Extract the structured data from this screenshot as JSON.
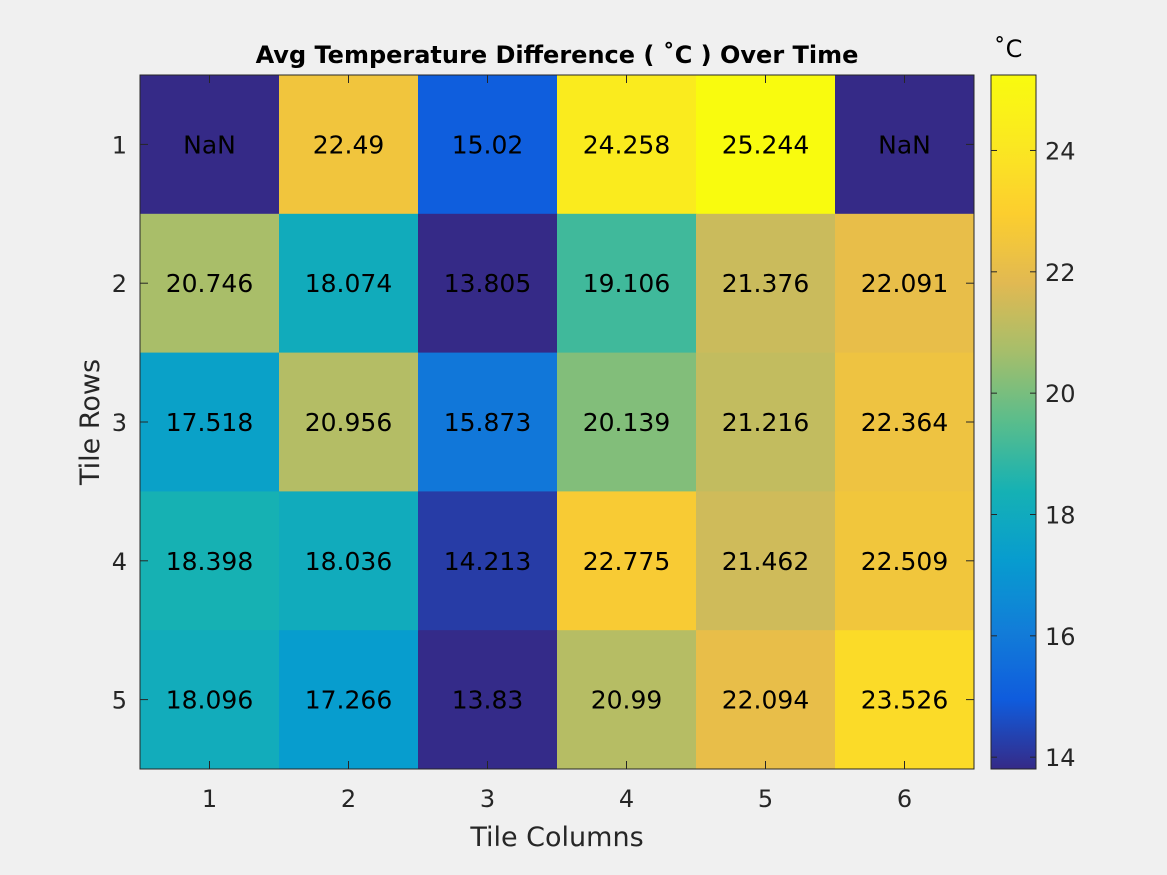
{
  "chart_data": {
    "type": "heatmap",
    "title": "Avg Temperature Difference ( ˚C ) Over Time",
    "xlabel": "Tile Columns",
    "ylabel": "Tile Rows",
    "x_categories": [
      "1",
      "2",
      "3",
      "4",
      "5",
      "6"
    ],
    "y_categories": [
      "1",
      "2",
      "3",
      "4",
      "5"
    ],
    "values": [
      [
        null,
        22.49,
        15.02,
        24.258,
        25.244,
        null
      ],
      [
        20.746,
        18.074,
        13.805,
        19.106,
        21.376,
        22.091
      ],
      [
        17.518,
        20.956,
        15.873,
        20.139,
        21.216,
        22.364
      ],
      [
        18.398,
        18.036,
        14.213,
        22.775,
        21.462,
        22.509
      ],
      [
        18.096,
        17.266,
        13.83,
        20.99,
        22.094,
        23.526
      ]
    ],
    "cell_labels": [
      [
        "NaN",
        "22.49",
        "15.02",
        "24.258",
        "25.244",
        "NaN"
      ],
      [
        "20.746",
        "18.074",
        "13.805",
        "19.106",
        "21.376",
        "22.091"
      ],
      [
        "17.518",
        "20.956",
        "15.873",
        "20.139",
        "21.216",
        "22.364"
      ],
      [
        "18.398",
        "18.036",
        "14.213",
        "22.775",
        "21.462",
        "22.509"
      ],
      [
        "18.096",
        "17.266",
        "13.83",
        "20.99",
        "22.094",
        "23.526"
      ]
    ],
    "nan_color": "#352a87",
    "colormap": "parula",
    "colorbar": {
      "label": "˚C",
      "range": [
        13.805,
        25.244
      ],
      "ticks": [
        14,
        16,
        18,
        20,
        22,
        24
      ]
    }
  },
  "colors": {
    "background": "#f0f0f0",
    "axes_border": "#262626",
    "text": "#000000"
  }
}
